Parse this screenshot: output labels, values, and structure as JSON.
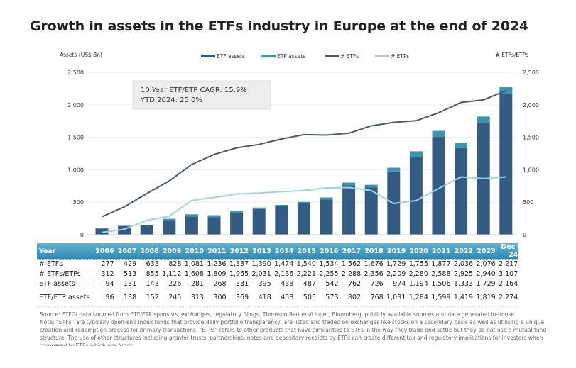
{
  "title": "Growth in assets in the ETFs industry in Europe at the end of 2024",
  "chart_data": {
    "type": "bar+line",
    "title": "Growth in assets in the ETFs industry in Europe at the end of 2024",
    "ylabel_left": "Assets (US$ Bn)",
    "ylabel_right": "# ETFs/ETPs",
    "ylim": [
      0,
      2500
    ],
    "yticks": [
      "0",
      "500",
      "1,000",
      "1,500",
      "2,000",
      "2,500"
    ],
    "categories": [
      "2006",
      "2007",
      "2008",
      "2009",
      "2010",
      "2011",
      "2012",
      "2013",
      "2014",
      "2015",
      "2016",
      "2017",
      "2018",
      "2019",
      "2020",
      "2021",
      "2022",
      "2023",
      "Dec-24"
    ],
    "series": [
      {
        "name": "ETF assets",
        "kind": "bar",
        "color": "#345b82",
        "values": [
          94,
          131,
          143,
          226,
          281,
          268,
          331,
          395,
          438,
          487,
          542,
          762,
          726,
          974,
          1194,
          1506,
          1333,
          1729,
          2164
        ]
      },
      {
        "name": "ETP assets",
        "kind": "bar-stacked",
        "color": "#3b94b0",
        "values": [
          2,
          7,
          9,
          19,
          32,
          32,
          38,
          23,
          20,
          18,
          31,
          40,
          42,
          57,
          90,
          93,
          86,
          90,
          110
        ]
      },
      {
        "name": "# ETFs",
        "kind": "line",
        "color": "#4a5a78",
        "values": [
          277,
          429,
          633,
          828,
          1081,
          1236,
          1337,
          1390,
          1474,
          1540,
          1534,
          1562,
          1676,
          1729,
          1755,
          1877,
          2036,
          2076,
          2217
        ]
      },
      {
        "name": "# ETPs",
        "kind": "line",
        "color": "#9fd3e3",
        "values": [
          35,
          84,
          222,
          284,
          527,
          573,
          628,
          641,
          662,
          681,
          721,
          726,
          680,
          480,
          525,
          711,
          889,
          864,
          890
        ]
      }
    ],
    "annotation": [
      "10 Year ETF/ETP CAGR: 15.9%",
      "YTD 2024: 25.0%"
    ],
    "legend_position": "top",
    "grid": true,
    "table": {
      "header": "Year",
      "rows": [
        {
          "label": "# ETFs",
          "values": [
            "277",
            "429",
            "633",
            "828",
            "1,081",
            "1,236",
            "1,337",
            "1,390",
            "1,474",
            "1,540",
            "1,534",
            "1,562",
            "1,676",
            "1,729",
            "1,755",
            "1,877",
            "2,036",
            "2,076",
            "2,217"
          ]
        },
        {
          "label": "# ETFs/ETPs",
          "values": [
            "312",
            "513",
            "855",
            "1,112",
            "1,608",
            "1,809",
            "1,965",
            "2,031",
            "2,136",
            "2,221",
            "2,255",
            "2,288",
            "2,356",
            "2,209",
            "2,280",
            "2,588",
            "2,925",
            "2,940",
            "3,107"
          ]
        },
        {
          "label": "ETF assets",
          "values": [
            "94",
            "131",
            "143",
            "226",
            "281",
            "268",
            "331",
            "395",
            "438",
            "487",
            "542",
            "762",
            "726",
            "974",
            "1,194",
            "1,506",
            "1,333",
            "1,729",
            "2,164"
          ]
        },
        {
          "label": "ETF/ETP assets",
          "values": [
            "96",
            "138",
            "152",
            "245",
            "313",
            "300",
            "369",
            "418",
            "458",
            "505",
            "573",
            "802",
            "768",
            "1,031",
            "1,284",
            "1,599",
            "1,419",
            "1,819",
            "2,274"
          ]
        }
      ]
    }
  },
  "notes": {
    "source": "Source: ETFGI data sourced from ETF/ETP sponsors, exchanges, regulatory filings, Thomson Reuters/Lipper, Bloomberg, publicly available sources and data generated in-house.",
    "note": "Note: “ETFs” are typically open-end index funds that provide daily portfolio transparency, are listed and traded on exchanges like stocks on a secondary basis as well as utilising a unique creation and redemption process for primary transactions. “ETPs” refers to other products that have similarities to ETFs in the way they trade and settle but they do not use a mutual fund structure. The use of other structures including grantor trusts, partnerships, notes and depositary receipts by ETPs can create different tax and regulatory implications for investors when compared to ETFs which are funds."
  }
}
